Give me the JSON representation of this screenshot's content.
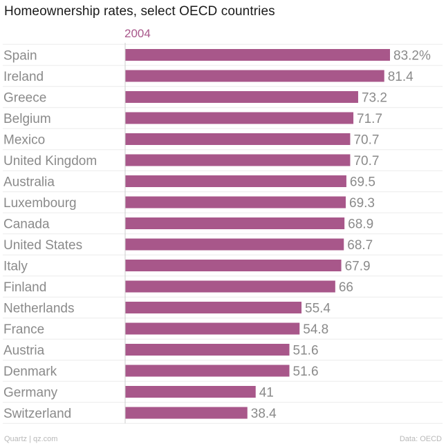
{
  "chart_data": {
    "type": "bar",
    "orientation": "horizontal",
    "title": "Homeownership rates, select OECD countries",
    "series": [
      {
        "name": "2004",
        "color": "#a8578a",
        "values": [
          83.2,
          81.4,
          73.2,
          71.7,
          70.7,
          70.7,
          69.5,
          69.3,
          68.9,
          68.7,
          67.9,
          66,
          55.4,
          54.8,
          51.6,
          51.6,
          41,
          38.4
        ]
      }
    ],
    "categories": [
      "Spain",
      "Ireland",
      "Greece",
      "Belgium",
      "Mexico",
      "United Kingdom",
      "Australia",
      "Luxembourg",
      "Canada",
      "United States",
      "Italy",
      "Finland",
      "Netherlands",
      "France",
      "Austria",
      "Denmark",
      "Germany",
      "Switzerland"
    ],
    "value_labels": [
      "83.2%",
      "81.4",
      "73.2",
      "71.7",
      "70.7",
      "70.7",
      "69.5",
      "69.3",
      "68.9",
      "68.7",
      "67.9",
      "66",
      "55.4",
      "54.8",
      "51.6",
      "51.6",
      "41",
      "38.4"
    ],
    "xlim": [
      0,
      83.2
    ],
    "grid": true,
    "legend": "top-left"
  },
  "footer": {
    "source_left": "Quartz | qz.com",
    "source_right": "Data: OECD"
  },
  "colors": {
    "bar": "#a8578a",
    "category_text": "#8a8a8a",
    "value_text": "#8a8a8a",
    "gridline": "#ececec",
    "axis": "#cccccc"
  }
}
